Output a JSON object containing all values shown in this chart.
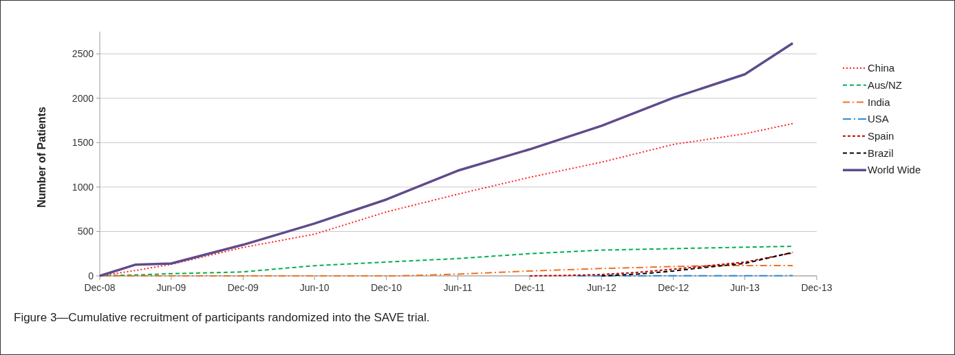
{
  "chart_data": {
    "type": "line",
    "ylabel": "Number of Patients",
    "annotations": [
      "Figure 3—Cumulative recruitment of participants randomized into the SAVE trial."
    ],
    "xlim": [
      "2008-12",
      "2013-12"
    ],
    "xticks": [
      {
        "value": "2008-12",
        "label": "Dec-08"
      },
      {
        "value": "2009-06",
        "label": "Jun-09"
      },
      {
        "value": "2009-12",
        "label": "Dec-09"
      },
      {
        "value": "2010-06",
        "label": "Jun-10"
      },
      {
        "value": "2010-12",
        "label": "Dec-10"
      },
      {
        "value": "2011-06",
        "label": "Jun-11"
      },
      {
        "value": "2011-12",
        "label": "Dec-11"
      },
      {
        "value": "2012-06",
        "label": "Jun-12"
      },
      {
        "value": "2012-12",
        "label": "Dec-12"
      },
      {
        "value": "2013-06",
        "label": "Jun-13"
      },
      {
        "value": "2013-12",
        "label": "Dec-13"
      }
    ],
    "ylim": [
      0,
      2750
    ],
    "yticks": [
      0,
      500,
      1000,
      1500,
      2000,
      2500
    ],
    "grid": "y",
    "legend": "right",
    "series": [
      {
        "name": "China",
        "color": "#ff2020",
        "line_style": "dotted",
        "x": [
          "2008-12",
          "2009-03",
          "2009-06",
          "2009-12",
          "2010-06",
          "2010-12",
          "2011-06",
          "2011-12",
          "2012-06",
          "2012-12",
          "2013-06",
          "2013-10"
        ],
        "values": [
          0,
          60,
          130,
          320,
          470,
          720,
          920,
          1110,
          1280,
          1480,
          1600,
          1715
        ]
      },
      {
        "name": "Aus/NZ",
        "color": "#00b050",
        "line_style": "dashed",
        "x": [
          "2008-12",
          "2009-03",
          "2009-06",
          "2009-12",
          "2010-06",
          "2010-12",
          "2011-06",
          "2011-12",
          "2012-06",
          "2012-12",
          "2013-06",
          "2013-10"
        ],
        "values": [
          0,
          10,
          25,
          45,
          115,
          155,
          195,
          250,
          290,
          307,
          323,
          333
        ]
      },
      {
        "name": "India",
        "color": "#f07020",
        "line_style": "dashed",
        "x": [
          "2008-12",
          "2011-01",
          "2011-06",
          "2011-12",
          "2012-06",
          "2012-12",
          "2013-03",
          "2013-10"
        ],
        "values": [
          0,
          0,
          20,
          55,
          83,
          105,
          115,
          117
        ]
      },
      {
        "name": "USA",
        "color": "#2e8ad8",
        "line_style": "dashed",
        "x": [
          "2012-04",
          "2013-10"
        ],
        "values": [
          0,
          3
        ]
      },
      {
        "name": "Spain",
        "color": "#c00000",
        "line_style": "dashed",
        "x": [
          "2011-12",
          "2012-03",
          "2012-06",
          "2012-09",
          "2012-12",
          "2013-06",
          "2013-10"
        ],
        "values": [
          0,
          5,
          15,
          40,
          75,
          155,
          260
        ]
      },
      {
        "name": "Brazil",
        "color": "#000000",
        "line_style": "dashed",
        "x": [
          "2012-06",
          "2012-09",
          "2012-12",
          "2013-03",
          "2013-06",
          "2013-10"
        ],
        "values": [
          0,
          20,
          55,
          100,
          140,
          265
        ]
      },
      {
        "name": "World Wide",
        "color": "#5f4b8b",
        "line_style": "solid",
        "x": [
          "2008-12",
          "2009-03",
          "2009-06",
          "2009-12",
          "2010-06",
          "2010-12",
          "2011-06",
          "2011-12",
          "2012-06",
          "2012-12",
          "2013-06",
          "2013-10"
        ],
        "values": [
          0,
          125,
          140,
          350,
          590,
          860,
          1185,
          1425,
          1690,
          2005,
          2270,
          2620
        ]
      }
    ]
  }
}
